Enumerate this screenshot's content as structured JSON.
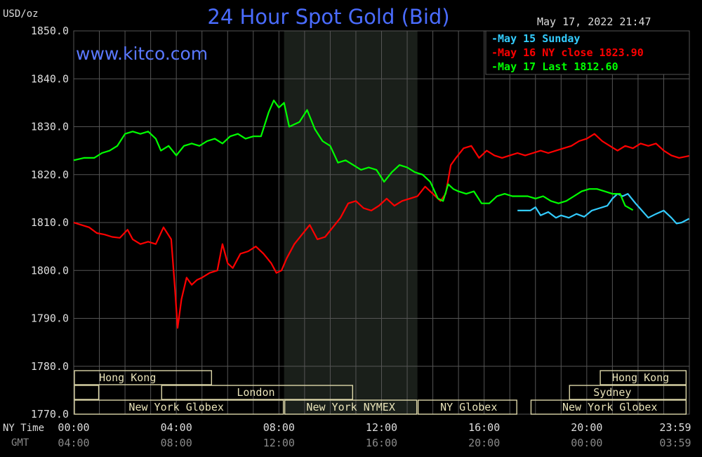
{
  "chart_data": {
    "type": "line",
    "title": "24 Hour Spot Gold (Bid)",
    "watermark": "www.kitco.com",
    "unit_label": "USD/oz",
    "timestamp": "May 17, 2022 21:47",
    "ylim": [
      1770,
      1850
    ],
    "y_ticks": [
      "1850.0",
      "1840.0",
      "1830.0",
      "1820.0",
      "1810.0",
      "1800.0",
      "1790.0",
      "1780.0",
      "1770.0"
    ],
    "y_tick_values": [
      1850,
      1840,
      1830,
      1820,
      1810,
      1800,
      1790,
      1780,
      1770
    ],
    "xlim_hours": [
      0,
      24
    ],
    "x_row_labels": {
      "ny": "NY Time",
      "gmt": "GMT"
    },
    "x_ticks_ny": [
      "00:00",
      "04:00",
      "08:00",
      "12:00",
      "16:00",
      "20:00",
      "23:59"
    ],
    "x_ticks_gmt": [
      "04:00",
      "08:00",
      "12:00",
      "16:00",
      "20:00",
      "00:00",
      "03:59"
    ],
    "x_tick_hours": [
      0,
      4,
      8,
      12,
      16,
      20,
      24
    ],
    "grid": true,
    "legend": {
      "placement": "top-right",
      "entries": [
        {
          "label": "May 15 Sunday",
          "color": "#33ccff"
        },
        {
          "label": "May 16 NY close 1823.90",
          "color": "#ff0000"
        },
        {
          "label": "May 17 Last 1812.60",
          "color": "#00ff00"
        }
      ]
    },
    "shaded_session": {
      "start_hour": 8.2,
      "end_hour": 13.4
    },
    "sessions": [
      {
        "label": "Hong Kong",
        "row": 0,
        "start_hour": 0,
        "end_hour": 5.4,
        "label_hour": 2.1
      },
      {
        "label": "Hong Kong",
        "row": 0,
        "start_hour": 20.5,
        "end_hour": 23.9,
        "label_hour": 22.1
      },
      {
        "label": "",
        "row": 1,
        "start_hour": 0,
        "end_hour": 1.0,
        "label_hour": 0.5
      },
      {
        "label": "London",
        "row": 1,
        "start_hour": 3.4,
        "end_hour": 10.9,
        "label_hour": 7.1
      },
      {
        "label": "Sydney",
        "row": 1,
        "start_hour": 19.3,
        "end_hour": 23.9,
        "label_hour": 21.0
      },
      {
        "label": "New York Globex",
        "row": 2,
        "start_hour": 0,
        "end_hour": 8.2,
        "label_hour": 4.0
      },
      {
        "label": "New York NYMEX",
        "row": 2,
        "start_hour": 8.2,
        "end_hour": 13.4,
        "label_hour": 10.8
      },
      {
        "label": "NY Globex",
        "row": 2,
        "start_hour": 13.4,
        "end_hour": 17.3,
        "label_hour": 15.4
      },
      {
        "label": "New York Globex",
        "row": 2,
        "start_hour": 17.8,
        "end_hour": 23.9,
        "label_hour": 20.9
      }
    ],
    "series": [
      {
        "name": "May 15 Sunday",
        "color": "#33ccff",
        "x": [
          17.3,
          17.8,
          18.0,
          18.2,
          18.5,
          18.8,
          19.0,
          19.3,
          19.6,
          19.9,
          20.2,
          20.5,
          20.8,
          21.0,
          21.2,
          21.4,
          21.6,
          21.9,
          22.1,
          22.4,
          22.7,
          23.0,
          23.3,
          23.5,
          23.7,
          23.99
        ],
        "y": [
          1812.5,
          1812.5,
          1813.2,
          1811.5,
          1812.2,
          1811.0,
          1811.5,
          1811.0,
          1811.8,
          1811.2,
          1812.5,
          1813.0,
          1813.5,
          1815.0,
          1816.0,
          1815.5,
          1816.0,
          1814.0,
          1812.8,
          1811.0,
          1811.8,
          1812.5,
          1811.0,
          1809.8,
          1810.0,
          1810.8
        ]
      },
      {
        "name": "May 16 NY close 1823.90",
        "color": "#ff0000",
        "x": [
          0.0,
          0.3,
          0.6,
          0.9,
          1.2,
          1.5,
          1.8,
          2.1,
          2.3,
          2.6,
          2.9,
          3.2,
          3.5,
          3.8,
          3.95,
          4.05,
          4.2,
          4.4,
          4.6,
          4.8,
          5.0,
          5.3,
          5.6,
          5.8,
          6.0,
          6.2,
          6.5,
          6.8,
          7.1,
          7.4,
          7.7,
          7.9,
          8.1,
          8.3,
          8.6,
          8.9,
          9.2,
          9.5,
          9.8,
          10.1,
          10.4,
          10.7,
          11.0,
          11.3,
          11.6,
          11.9,
          12.2,
          12.5,
          12.8,
          13.1,
          13.4,
          13.7,
          14.0,
          14.3,
          14.5,
          14.7,
          14.9,
          15.2,
          15.5,
          15.8,
          16.1,
          16.4,
          16.7,
          17.0,
          17.3,
          17.6,
          17.9,
          18.2,
          18.5,
          18.8,
          19.1,
          19.4,
          19.7,
          20.0,
          20.3,
          20.6,
          20.9,
          21.2,
          21.5,
          21.8,
          22.1,
          22.4,
          22.7,
          23.0,
          23.3,
          23.6,
          23.99
        ],
        "y": [
          1810.0,
          1809.5,
          1809.0,
          1807.8,
          1807.5,
          1807.0,
          1806.8,
          1808.5,
          1806.5,
          1805.5,
          1806.0,
          1805.5,
          1809.0,
          1806.5,
          1796.0,
          1788.0,
          1794.0,
          1798.5,
          1797.0,
          1798.0,
          1798.5,
          1799.5,
          1800.0,
          1805.5,
          1801.5,
          1800.5,
          1803.5,
          1804.0,
          1805.0,
          1803.5,
          1801.5,
          1799.5,
          1800.0,
          1802.5,
          1805.5,
          1807.5,
          1809.5,
          1806.5,
          1807.0,
          1809.0,
          1811.0,
          1814.0,
          1814.5,
          1813.0,
          1812.5,
          1813.5,
          1815.0,
          1813.5,
          1814.5,
          1815.0,
          1815.5,
          1817.5,
          1816.0,
          1814.5,
          1816.0,
          1822.0,
          1823.5,
          1825.5,
          1826.0,
          1823.5,
          1825.0,
          1824.0,
          1823.5,
          1824.0,
          1824.5,
          1824.0,
          1824.5,
          1825.0,
          1824.5,
          1825.0,
          1825.5,
          1826.0,
          1827.0,
          1827.5,
          1828.5,
          1827.0,
          1826.0,
          1825.0,
          1826.0,
          1825.5,
          1826.5,
          1826.0,
          1826.5,
          1825.0,
          1824.0,
          1823.5,
          1823.9
        ]
      },
      {
        "name": "May 17 Last 1812.60",
        "color": "#00ff00",
        "x": [
          0.0,
          0.4,
          0.8,
          1.1,
          1.4,
          1.7,
          2.0,
          2.3,
          2.6,
          2.9,
          3.2,
          3.4,
          3.7,
          4.0,
          4.3,
          4.6,
          4.9,
          5.2,
          5.5,
          5.8,
          6.1,
          6.4,
          6.7,
          7.0,
          7.3,
          7.6,
          7.8,
          8.0,
          8.2,
          8.4,
          8.6,
          8.8,
          9.1,
          9.4,
          9.7,
          10.0,
          10.3,
          10.6,
          10.9,
          11.2,
          11.5,
          11.8,
          12.1,
          12.4,
          12.7,
          13.0,
          13.3,
          13.6,
          13.9,
          14.2,
          14.4,
          14.6,
          14.8,
          15.0,
          15.3,
          15.6,
          15.9,
          16.2,
          16.5,
          16.8,
          17.1,
          17.4,
          17.7,
          18.0,
          18.3,
          18.6,
          18.9,
          19.2,
          19.5,
          19.8,
          20.1,
          20.4,
          20.7,
          21.0,
          21.3,
          21.5,
          21.8
        ],
        "y": [
          1823.0,
          1823.5,
          1823.5,
          1824.5,
          1825.0,
          1826.0,
          1828.5,
          1829.0,
          1828.5,
          1829.0,
          1827.5,
          1825.0,
          1826.0,
          1824.0,
          1826.0,
          1826.5,
          1826.0,
          1827.0,
          1827.5,
          1826.5,
          1828.0,
          1828.5,
          1827.5,
          1828.0,
          1828.0,
          1833.0,
          1835.5,
          1834.0,
          1835.0,
          1830.0,
          1830.5,
          1831.0,
          1833.5,
          1829.5,
          1827.0,
          1826.0,
          1822.5,
          1823.0,
          1822.0,
          1821.0,
          1821.5,
          1821.0,
          1818.5,
          1820.5,
          1822.0,
          1821.5,
          1820.5,
          1820.0,
          1818.5,
          1815.0,
          1814.5,
          1818.0,
          1817.0,
          1816.5,
          1816.0,
          1816.5,
          1814.0,
          1814.0,
          1815.5,
          1816.0,
          1815.5,
          1815.5,
          1815.5,
          1815.0,
          1815.5,
          1814.5,
          1814.0,
          1814.5,
          1815.5,
          1816.5,
          1817.0,
          1817.0,
          1816.5,
          1816.0,
          1816.0,
          1813.5,
          1812.6
        ]
      }
    ]
  },
  "colors": {
    "background": "#000000",
    "grid": "#555555",
    "axis_text": "#dddddd",
    "title": "#4a6cff",
    "watermark": "#5a78ff",
    "session_box": "#dcd6a8",
    "session_text": "#e8e2b8",
    "shade": "#1a1f1a",
    "gmt_text": "#8a8a8a"
  }
}
